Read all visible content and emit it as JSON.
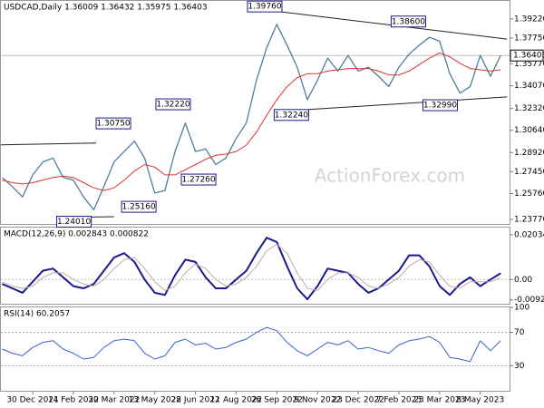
{
  "chart_data": [
    {
      "type": "line",
      "title": "USDCAD,Daily 1.36009 1.36432 1.35975 1.36403",
      "watermark": "ActionForex.com",
      "x": [
        -24,
        -16,
        -8,
        0,
        8,
        16,
        24,
        32,
        40,
        48,
        56,
        64,
        72,
        80,
        88,
        96,
        104,
        112,
        120,
        128,
        136,
        144,
        152,
        160,
        168,
        176,
        184,
        192,
        200,
        208,
        216,
        224,
        232,
        240,
        248,
        256,
        264,
        272,
        280,
        288,
        296,
        304,
        312,
        320,
        328,
        336,
        344,
        352,
        360,
        368
      ],
      "xlim": [
        -25,
        375
      ],
      "xticks": [
        {
          "value": 0,
          "label": "30 Dec 2021"
        },
        {
          "value": 32,
          "label": "14 Feb 2022"
        },
        {
          "value": 64,
          "label": "30 Mar 2022"
        },
        {
          "value": 96,
          "label": "13 May 2022"
        },
        {
          "value": 128,
          "label": "28 Jun 2022"
        },
        {
          "value": 160,
          "label": "11 Aug 2022"
        },
        {
          "value": 192,
          "label": "26 Sep 2022"
        },
        {
          "value": 224,
          "label": "9 Nov 2022"
        },
        {
          "value": 256,
          "label": "23 Dec 2022"
        },
        {
          "value": 288,
          "label": "7 Feb 2023"
        },
        {
          "value": 320,
          "label": "23 Mar 2023"
        },
        {
          "value": 352,
          "label": "8 May 2023"
        }
      ],
      "ylim": [
        1.2342,
        1.4061
      ],
      "yticks": [
        {
          "value": 1.3922,
          "label": "1.39220"
        },
        {
          "value": 1.3775,
          "label": "1.37750"
        },
        {
          "value": 1.3577,
          "label": "1.35770"
        },
        {
          "value": 1.3407,
          "label": "1.34070"
        },
        {
          "value": 1.3232,
          "label": "1.32320"
        },
        {
          "value": 1.3064,
          "label": "1.30640"
        },
        {
          "value": 1.2892,
          "label": "1.28920"
        },
        {
          "value": 1.2745,
          "label": "1.27450"
        },
        {
          "value": 1.2576,
          "label": "1.25760"
        },
        {
          "value": 1.2377,
          "label": "1.23770"
        }
      ],
      "last_price": {
        "value": 1.36403,
        "label": "1.36403"
      },
      "series": [
        {
          "name": "USDCAD",
          "color": "#4d7f99",
          "values": [
            1.27,
            1.263,
            1.255,
            1.272,
            1.282,
            1.285,
            1.27,
            1.268,
            1.255,
            1.245,
            1.263,
            1.282,
            1.29,
            1.298,
            1.285,
            1.258,
            1.26,
            1.29,
            1.312,
            1.29,
            1.292,
            1.28,
            1.285,
            1.3,
            1.312,
            1.345,
            1.37,
            1.388,
            1.372,
            1.355,
            1.33,
            1.345,
            1.362,
            1.352,
            1.364,
            1.352,
            1.355,
            1.348,
            1.34,
            1.355,
            1.365,
            1.372,
            1.378,
            1.375,
            1.35,
            1.335,
            1.34,
            1.364,
            1.348,
            1.364
          ]
        },
        {
          "name": "MA",
          "color": "#e03030",
          "values": [
            1.268,
            1.266,
            1.265,
            1.266,
            1.268,
            1.27,
            1.271,
            1.27,
            1.266,
            1.262,
            1.26,
            1.262,
            1.268,
            1.275,
            1.28,
            1.278,
            1.272,
            1.272,
            1.276,
            1.28,
            1.284,
            1.287,
            1.288,
            1.29,
            1.295,
            1.305,
            1.318,
            1.33,
            1.34,
            1.347,
            1.35,
            1.35,
            1.352,
            1.353,
            1.354,
            1.354,
            1.354,
            1.352,
            1.349,
            1.349,
            1.352,
            1.357,
            1.362,
            1.366,
            1.363,
            1.358,
            1.354,
            1.353,
            1.352,
            1.353
          ]
        }
      ],
      "annotations": [
        {
          "x": 196,
          "value": 1.3976,
          "label": "1.39760"
        },
        {
          "x": 309,
          "value": 1.386,
          "label": "1.38600"
        },
        {
          "x": 334,
          "value": 1.3299,
          "label": "1.32990"
        },
        {
          "x": 217,
          "value": 1.3224,
          "label": "1.32240"
        },
        {
          "x": 124,
          "value": 1.3222,
          "label": "1.32220"
        },
        {
          "x": 77,
          "value": 1.3075,
          "label": "1.30750"
        },
        {
          "x": 97,
          "value": 1.2516,
          "label": "1.25160"
        },
        {
          "x": 144,
          "value": 1.2726,
          "label": "1.27260"
        },
        {
          "x": 46,
          "value": 1.2401,
          "label": "1.24010"
        }
      ],
      "trendlines": [
        {
          "x": [
            196,
            373
          ],
          "y": [
            1.3976,
            1.3767
          ]
        },
        {
          "x": [
            217,
            373
          ],
          "y": [
            1.3224,
            1.3321
          ]
        },
        {
          "x": [
            -25,
            50
          ],
          "y": [
            1.2952,
            1.2966
          ]
        },
        {
          "x": [
            21,
            64
          ],
          "y": [
            1.2392,
            1.2398
          ]
        }
      ]
    },
    {
      "type": "line",
      "title": "MACD(12,26,9) 0.002843 0.000822",
      "ylim": [
        -0.011,
        0.0236
      ],
      "yticks": [
        0.020349,
        {
          "value": 0,
          "label": "0.00"
        },
        -0.009215
      ],
      "series": [
        {
          "name": "MACD",
          "color": "#1a1a8c",
          "values": [
            -0.002,
            -0.004,
            -0.006,
            -0.001,
            0.004,
            0.005,
            0.001,
            -0.003,
            -0.004,
            -0.002,
            0.004,
            0.01,
            0.012,
            0.008,
            0,
            -0.006,
            -0.007,
            0.002,
            0.009,
            0.008,
            0.001,
            -0.004,
            -0.004,
            0,
            0.004,
            0.012,
            0.019,
            0.017,
            0.006,
            -0.004,
            -0.009,
            -0.003,
            0.005,
            0.004,
            0.003,
            -0.002,
            -0.006,
            -0.004,
            0,
            0.004,
            0.011,
            0.011,
            0.006,
            -0.003,
            -0.007,
            -0.002,
            0.001,
            -0.003,
            0,
            0.002843
          ]
        },
        {
          "name": "Signal",
          "color": "#c8a8a8",
          "values": [
            -0.001,
            -0.003,
            -0.004,
            -0.003,
            0.001,
            0.003,
            0.003,
            0,
            -0.002,
            -0.003,
            0,
            0.005,
            0.009,
            0.01,
            0.005,
            -0.001,
            -0.005,
            -0.003,
            0.003,
            0.007,
            0.005,
            0,
            -0.003,
            -0.002,
            0.001,
            0.006,
            0.013,
            0.016,
            0.012,
            0.003,
            -0.004,
            -0.005,
            0,
            0.003,
            0.003,
            0.001,
            -0.003,
            -0.004,
            -0.002,
            0.001,
            0.006,
            0.009,
            0.008,
            0.002,
            -0.003,
            -0.004,
            -0.001,
            -0.001,
            -0.001,
            0.000822
          ]
        }
      ]
    },
    {
      "type": "line",
      "title": "RSI(14) 60.2057",
      "ylim": [
        0,
        100
      ],
      "yticks": [
        100,
        70,
        30
      ],
      "levels": [
        70,
        30
      ],
      "series": [
        {
          "name": "RSI",
          "color": "#3a5fd0",
          "values": [
            50,
            45,
            42,
            52,
            58,
            60,
            50,
            45,
            38,
            40,
            52,
            60,
            62,
            60,
            45,
            38,
            42,
            58,
            62,
            55,
            57,
            50,
            52,
            58,
            62,
            70,
            76,
            72,
            58,
            48,
            42,
            50,
            58,
            55,
            60,
            50,
            52,
            48,
            45,
            55,
            60,
            62,
            65,
            58,
            40,
            38,
            35,
            60,
            48,
            60.2057
          ]
        }
      ]
    }
  ]
}
